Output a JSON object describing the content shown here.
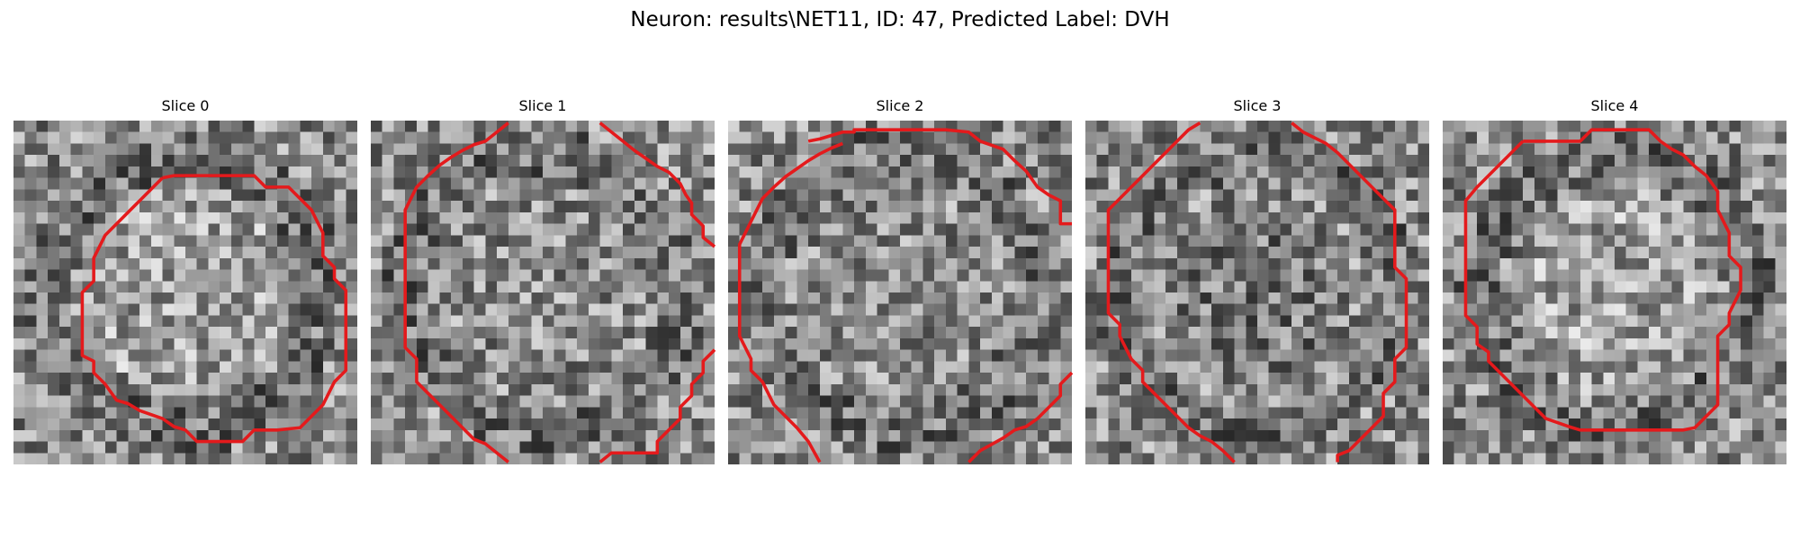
{
  "figure": {
    "title": "Neuron: results\\NET11, ID: 47, Predicted Label: DVH",
    "panels": [
      {
        "label": "Slice 0"
      },
      {
        "label": "Slice 1"
      },
      {
        "label": "Slice 2"
      },
      {
        "label": "Slice 3"
      },
      {
        "label": "Slice 4"
      }
    ],
    "contour_color": "#e41a1c",
    "image_colormap": "grayscale"
  }
}
